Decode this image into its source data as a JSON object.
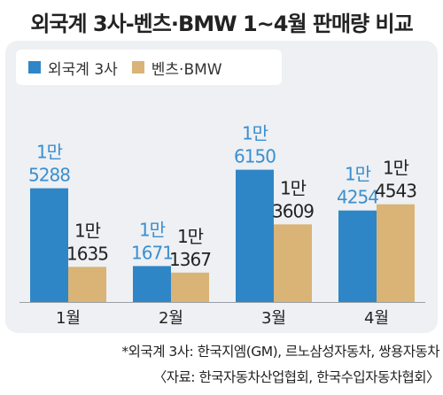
{
  "title": "외국계 3사-벤츠·BMW 1~4월 판매량 비교",
  "colors": {
    "foreign": "#2f86c6",
    "benz_bmw": "#d9b476",
    "foreign_label": "#3b8fd0",
    "text": "#222222",
    "panel": "#eef0f3"
  },
  "chart_data": {
    "type": "bar",
    "title": "외국계 3사-벤츠·BMW 1~4월 판매량 비교",
    "categories": [
      "1월",
      "2월",
      "3월",
      "4월"
    ],
    "series": [
      {
        "name": "외국계 3사",
        "values": [
          15288,
          11671,
          16150,
          14254
        ],
        "labels": [
          [
            "1만",
            "5288"
          ],
          [
            "1만",
            "1671"
          ],
          [
            "1만",
            "6150"
          ],
          [
            "1만",
            "4254"
          ]
        ]
      },
      {
        "name": "벤츠·BMW",
        "values": [
          11635,
          11367,
          13609,
          14543
        ],
        "labels": [
          [
            "1만",
            "1635"
          ],
          [
            "1만",
            "1367"
          ],
          [
            "1만",
            "3609"
          ],
          [
            "1만",
            "4543"
          ]
        ]
      }
    ],
    "grid": false,
    "legend_position": "top-left"
  },
  "footnote": "*외국계 3사: 한국지엠(GM), 르노삼성자동차, 쌍용자동차",
  "source": "〈자료: 한국자동차산업협회, 한국수입자동차협회〉"
}
